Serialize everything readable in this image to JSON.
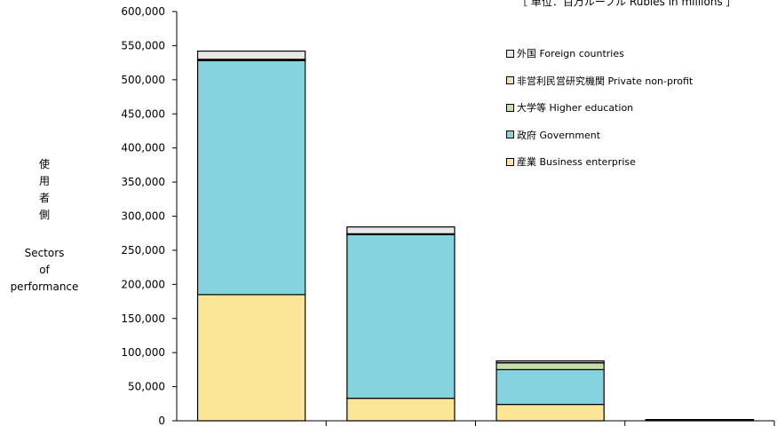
{
  "chart_data": {
    "type": "bar",
    "stacked": true,
    "unit_note": "［ 単位：百万ルーブル  Rubles in millions ］",
    "ylabel_jp": [
      "使",
      "用",
      "者",
      "側"
    ],
    "ylabel_en": [
      "Sectors",
      "of",
      "performance"
    ],
    "ylim": [
      0,
      600000
    ],
    "y_ticks": [
      "0",
      "50,000",
      "100,000",
      "150,000",
      "200,000",
      "250,000",
      "300,000",
      "350,000",
      "400,000",
      "450,000",
      "500,000",
      "550,000",
      "600,000"
    ],
    "y_tick_values": [
      0,
      50000,
      100000,
      150000,
      200000,
      250000,
      300000,
      350000,
      400000,
      450000,
      500000,
      550000,
      600000
    ],
    "categories": [
      "",
      "",
      "",
      ""
    ],
    "legend_position": "right",
    "series": [
      {
        "name": "産業 Business enterprise",
        "color": "#fbe597",
        "values": [
          185000,
          33000,
          24000,
          800
        ]
      },
      {
        "name": "政府 Government",
        "color": "#86d3e0",
        "values": [
          343000,
          240000,
          51000,
          500
        ]
      },
      {
        "name": "大学等 Higher education",
        "color": "#c4dfaa",
        "values": [
          1500,
          1000,
          10000,
          200
        ]
      },
      {
        "name": "非営利民営研究機関 Private non-profit",
        "color": "#f6ddb0",
        "values": [
          500,
          200,
          300,
          100
        ]
      },
      {
        "name": "外国 Foreign countries",
        "color": "#e8e8e8",
        "values": [
          12000,
          10000,
          2500,
          100
        ]
      }
    ]
  }
}
